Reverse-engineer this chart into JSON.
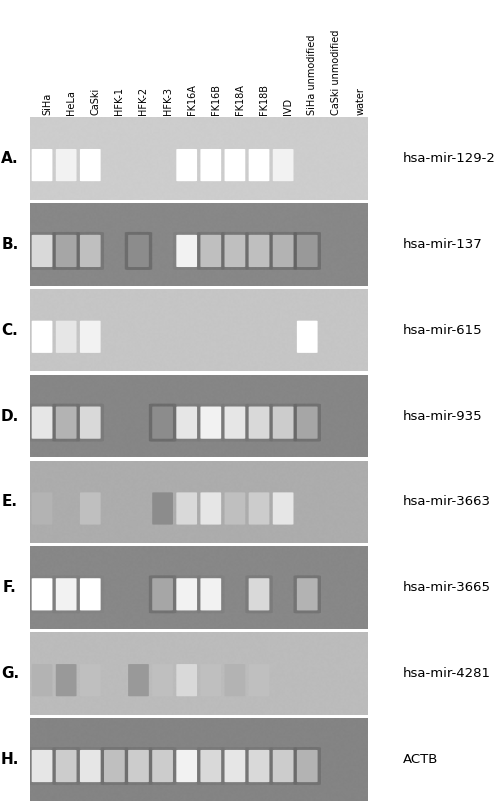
{
  "panels": [
    {
      "label": "A.",
      "gene": "hsa-mir-129-2",
      "bg_color": [
        155,
        155,
        155
      ],
      "dark": false,
      "bands": [
        {
          "lane": 0,
          "bright": 1.0
        },
        {
          "lane": 1,
          "bright": 0.95
        },
        {
          "lane": 2,
          "bright": 1.0
        },
        {
          "lane": 6,
          "bright": 1.0
        },
        {
          "lane": 7,
          "bright": 1.0
        },
        {
          "lane": 8,
          "bright": 1.0
        },
        {
          "lane": 9,
          "bright": 1.0
        },
        {
          "lane": 10,
          "bright": 0.95
        }
      ],
      "marker_bands": [
        0.15,
        0.5,
        0.85
      ]
    },
    {
      "label": "B.",
      "gene": "hsa-mir-137",
      "bg_color": [
        15,
        15,
        15
      ],
      "dark": true,
      "bands": [
        {
          "lane": 0,
          "bright": 0.85
        },
        {
          "lane": 1,
          "bright": 0.65
        },
        {
          "lane": 2,
          "bright": 0.75
        },
        {
          "lane": 4,
          "bright": 0.55
        },
        {
          "lane": 6,
          "bright": 0.95
        },
        {
          "lane": 7,
          "bright": 0.75
        },
        {
          "lane": 8,
          "bright": 0.75
        },
        {
          "lane": 9,
          "bright": 0.75
        },
        {
          "lane": 10,
          "bright": 0.7
        },
        {
          "lane": 11,
          "bright": 0.6
        }
      ],
      "marker_bands": [
        0.1,
        0.27,
        0.44,
        0.61,
        0.78
      ]
    },
    {
      "label": "C.",
      "gene": "hsa-mir-615",
      "bg_color": [
        140,
        140,
        140
      ],
      "dark": false,
      "bands": [
        {
          "lane": 0,
          "bright": 1.0
        },
        {
          "lane": 1,
          "bright": 0.9
        },
        {
          "lane": 2,
          "bright": 0.95
        },
        {
          "lane": 11,
          "bright": 1.0
        }
      ],
      "marker_bands": [
        0.15,
        0.5,
        0.85
      ]
    },
    {
      "label": "D.",
      "gene": "hsa-mir-935",
      "bg_color": [
        12,
        12,
        12
      ],
      "dark": true,
      "bands": [
        {
          "lane": 0,
          "bright": 0.9
        },
        {
          "lane": 1,
          "bright": 0.7
        },
        {
          "lane": 2,
          "bright": 0.85
        },
        {
          "lane": 5,
          "bright": 0.55
        },
        {
          "lane": 6,
          "bright": 0.9
        },
        {
          "lane": 7,
          "bright": 0.95
        },
        {
          "lane": 8,
          "bright": 0.9
        },
        {
          "lane": 9,
          "bright": 0.85
        },
        {
          "lane": 10,
          "bright": 0.8
        },
        {
          "lane": 11,
          "bright": 0.65
        }
      ],
      "marker_bands": [
        0.15,
        0.38,
        0.61,
        0.84
      ]
    },
    {
      "label": "E.",
      "gene": "hsa-mir-3663",
      "bg_color": [
        90,
        90,
        90
      ],
      "dark": true,
      "bands": [
        {
          "lane": 0,
          "bright": 0.7
        },
        {
          "lane": 2,
          "bright": 0.75
        },
        {
          "lane": 5,
          "bright": 0.55
        },
        {
          "lane": 6,
          "bright": 0.85
        },
        {
          "lane": 7,
          "bright": 0.9
        },
        {
          "lane": 8,
          "bright": 0.75
        },
        {
          "lane": 9,
          "bright": 0.8
        },
        {
          "lane": 10,
          "bright": 0.9
        }
      ],
      "marker_bands": [
        0.15,
        0.5,
        0.85
      ]
    },
    {
      "label": "F.",
      "gene": "hsa-mir-3665",
      "bg_color": [
        15,
        15,
        15
      ],
      "dark": true,
      "bands": [
        {
          "lane": 0,
          "bright": 1.0
        },
        {
          "lane": 1,
          "bright": 0.95
        },
        {
          "lane": 2,
          "bright": 1.0
        },
        {
          "lane": 5,
          "bright": 0.65
        },
        {
          "lane": 6,
          "bright": 0.95
        },
        {
          "lane": 7,
          "bright": 0.95
        },
        {
          "lane": 9,
          "bright": 0.85
        },
        {
          "lane": 11,
          "bright": 0.7
        }
      ],
      "marker_bands": [
        0.2,
        0.5,
        0.8
      ]
    },
    {
      "label": "G.",
      "gene": "hsa-mir-4281",
      "bg_color": [
        120,
        120,
        120
      ],
      "dark": false,
      "bands": [
        {
          "lane": 0,
          "bright": 0.7
        },
        {
          "lane": 1,
          "bright": 0.6
        },
        {
          "lane": 2,
          "bright": 0.75
        },
        {
          "lane": 4,
          "bright": 0.6
        },
        {
          "lane": 5,
          "bright": 0.75
        },
        {
          "lane": 6,
          "bright": 0.85
        },
        {
          "lane": 7,
          "bright": 0.75
        },
        {
          "lane": 8,
          "bright": 0.7
        },
        {
          "lane": 9,
          "bright": 0.75
        }
      ],
      "marker_bands": [
        0.2,
        0.5,
        0.8
      ]
    },
    {
      "label": "H.",
      "gene": "ACTB",
      "bg_color": [
        8,
        8,
        8
      ],
      "dark": true,
      "bands": [
        {
          "lane": 0,
          "bright": 0.9
        },
        {
          "lane": 1,
          "bright": 0.8
        },
        {
          "lane": 2,
          "bright": 0.9
        },
        {
          "lane": 3,
          "bright": 0.75
        },
        {
          "lane": 4,
          "bright": 0.8
        },
        {
          "lane": 5,
          "bright": 0.8
        },
        {
          "lane": 6,
          "bright": 0.95
        },
        {
          "lane": 7,
          "bright": 0.85
        },
        {
          "lane": 8,
          "bright": 0.9
        },
        {
          "lane": 9,
          "bright": 0.85
        },
        {
          "lane": 10,
          "bright": 0.8
        },
        {
          "lane": 11,
          "bright": 0.7
        }
      ],
      "marker_bands": [
        0.2,
        0.5,
        0.8
      ]
    }
  ],
  "lane_labels": [
    "SiHa",
    "HeLa",
    "CaSki",
    "HFK-1",
    "HFK-2",
    "HFK-3",
    "FK16A",
    "FK16B",
    "FK18A",
    "FK18B",
    "IVD",
    "SiHa unmodified",
    "CaSki unmodified",
    "water"
  ],
  "n_data_lanes": 14,
  "fig_bg": "#ffffff",
  "label_fontsize": 10,
  "gene_fontsize": 9.5,
  "lane_label_fontsize": 7.0
}
